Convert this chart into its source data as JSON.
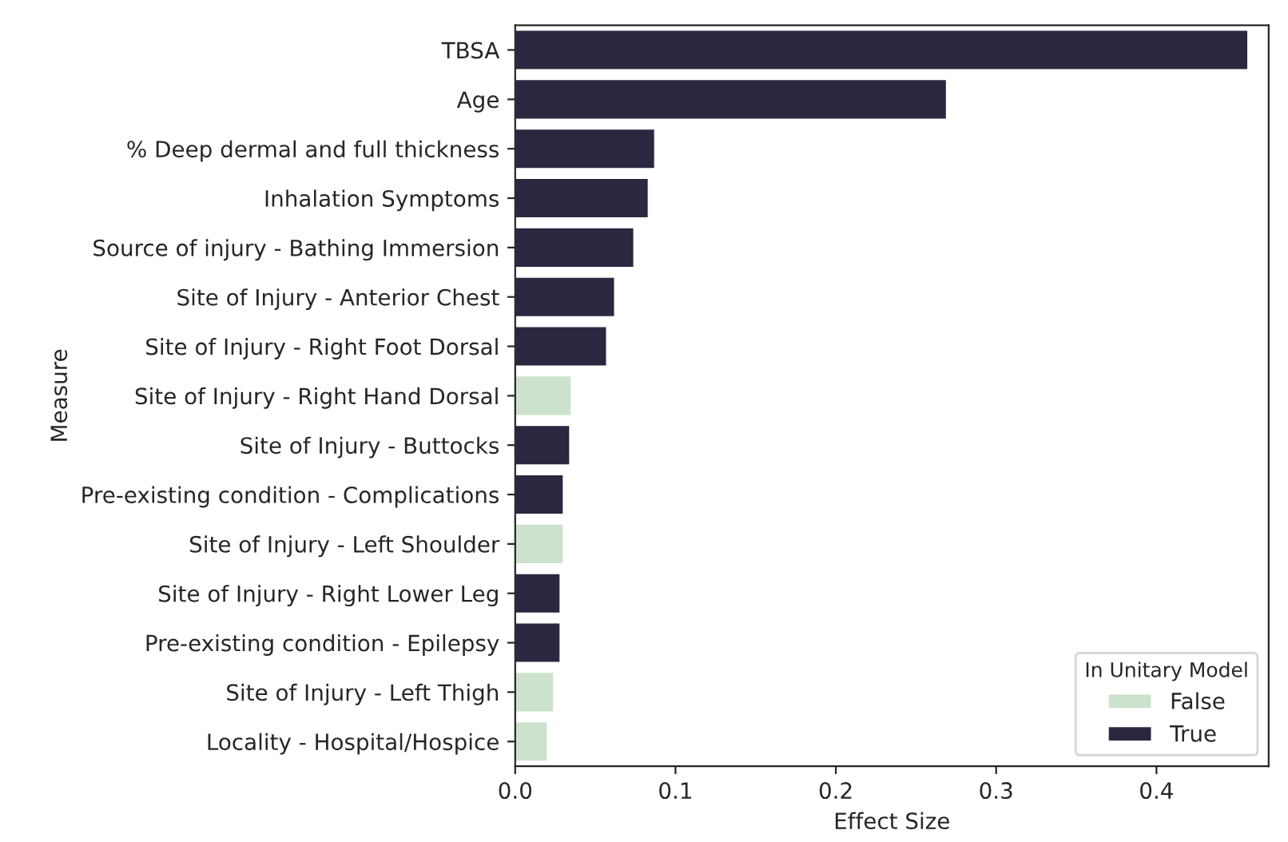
{
  "chart_data": {
    "type": "bar",
    "orientation": "horizontal",
    "xlabel": "Effect Size",
    "ylabel": "Measure",
    "legend_title": "In Unitary Model",
    "legend": "bottom right",
    "grid": false,
    "categories": [
      "TBSA",
      "Age",
      "% Deep dermal and full thickness",
      "Inhalation Symptoms",
      "Source of injury - Bathing Immersion",
      "Site of Injury - Anterior Chest",
      "Site of Injury - Right Foot Dorsal",
      "Site of Injury - Right Hand Dorsal",
      "Site of Injury - Buttocks",
      "Pre-existing condition - Complications",
      "Site of Injury - Left Shoulder",
      "Site of Injury - Right Lower Leg",
      "Pre-existing condition - Epilepsy",
      "Site of Injury - Left Thigh",
      "Locality - Hospital/Hospice"
    ],
    "series": [
      {
        "name": "False",
        "color": "#cde2cc",
        "values": [
          null,
          null,
          null,
          null,
          null,
          null,
          null,
          0.035,
          null,
          null,
          0.03,
          null,
          null,
          0.024,
          0.02
        ]
      },
      {
        "name": "True",
        "color": "#2a2840",
        "values": [
          0.457,
          0.269,
          0.087,
          0.083,
          0.074,
          0.062,
          0.057,
          null,
          0.034,
          0.03,
          null,
          0.028,
          0.028,
          null,
          null
        ]
      }
    ],
    "xlim": [
      0,
      0.47
    ],
    "xticks": [
      {
        "value": 0,
        "label": "0.0"
      },
      0.1,
      0.2,
      0.3,
      0.4
    ]
  }
}
